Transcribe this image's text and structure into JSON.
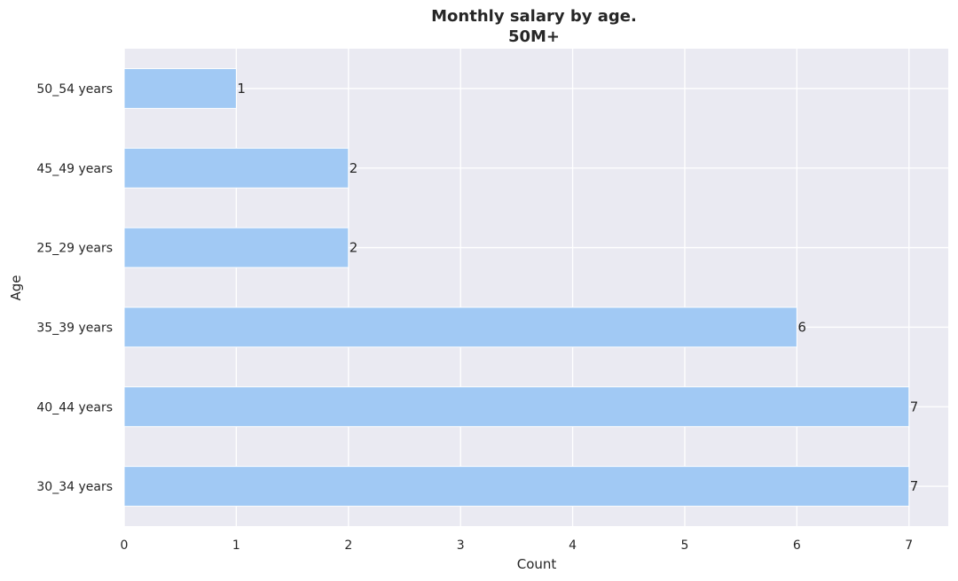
{
  "chart_data": {
    "type": "bar",
    "orientation": "horizontal",
    "title": "Monthly salary by age.",
    "subtitle": "50M+",
    "xlabel": "Count",
    "ylabel": "Age",
    "categories": [
      "50_54 years",
      "45_49 years",
      "25_29 years",
      "35_39 years",
      "40_44 years",
      "30_34 years"
    ],
    "values": [
      1,
      2,
      2,
      6,
      7,
      7
    ],
    "data_labels": [
      "1",
      "2",
      "2",
      "6",
      "7",
      "7"
    ],
    "x_ticks": [
      "0",
      "1",
      "2",
      "3",
      "4",
      "5",
      "6",
      "7"
    ],
    "xlim": [
      0,
      7.35
    ],
    "grid": true,
    "colors": {
      "bar": "#a1c9f4",
      "plot_background": "#eaeaf2",
      "grid": "#ffffff"
    }
  }
}
